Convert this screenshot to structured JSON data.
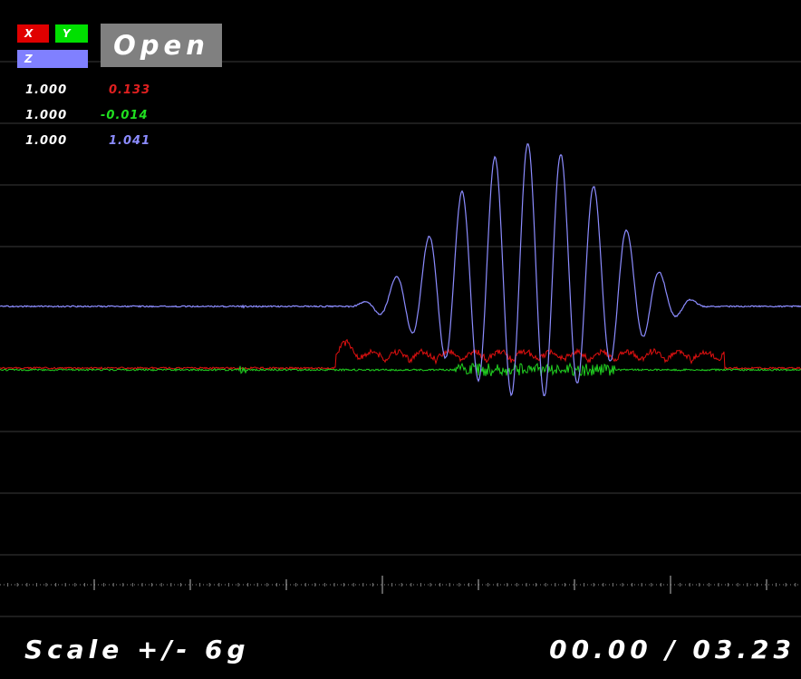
{
  "legend": {
    "x": "X",
    "y": "Y",
    "z": "Z"
  },
  "button": "Open",
  "readings": [
    {
      "scale": "1.000",
      "value": "0.133"
    },
    {
      "scale": "1.000",
      "value": "-0.014"
    },
    {
      "scale": "1.000",
      "value": "1.041"
    }
  ],
  "footer": {
    "scale": "Scale +/- 6g",
    "time": "00.00 / 03.23"
  }
}
